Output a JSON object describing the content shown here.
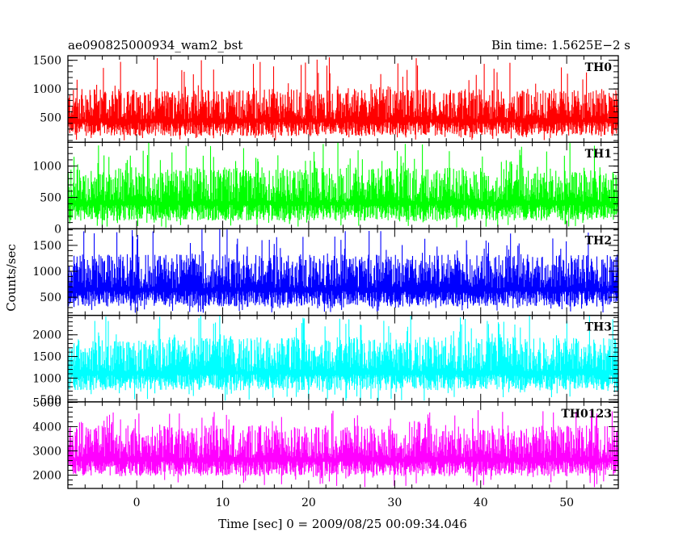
{
  "header": {
    "left_title": "ae090825000934_wam2_bst",
    "right_title": "Bin time: 1.5625E−2 s"
  },
  "chart_data": {
    "type": "line",
    "xlabel": "Time [sec] 0 = 2009/08/25 00:09:34.046",
    "ylabel": "Counts/sec",
    "xlim": [
      -8,
      56
    ],
    "xticks": [
      0,
      10,
      20,
      30,
      40,
      50
    ],
    "x_data_range": [
      -8,
      56
    ],
    "bin_time_s": 0.015625,
    "grid": false,
    "legend": "none",
    "panels": [
      {
        "name": "TH0",
        "color": "#ff0000",
        "ylim": [
          70,
          1580
        ],
        "yticks": [
          500,
          1000,
          1500
        ],
        "typical_low": 180,
        "typical_high": 1000,
        "min_dip": 90,
        "max_spike": 1560
      },
      {
        "name": "TH1",
        "color": "#00ff00",
        "ylim": [
          0,
          1380
        ],
        "yticks": [
          0,
          500,
          1000
        ],
        "typical_low": 130,
        "typical_high": 980,
        "min_dip": 20,
        "max_spike": 1380
      },
      {
        "name": "TH2",
        "color": "#0000ff",
        "ylim": [
          150,
          1820
        ],
        "yticks": [
          500,
          1000,
          1500
        ],
        "typical_low": 320,
        "typical_high": 1330,
        "min_dip": 200,
        "max_spike": 1820
      },
      {
        "name": "TH3",
        "color": "#00ffff",
        "ylim": [
          450,
          2450
        ],
        "yticks": [
          500,
          1000,
          1500,
          2000
        ],
        "typical_low": 720,
        "typical_high": 1950,
        "min_dip": 470,
        "max_spike": 2450
      },
      {
        "name": "TH0123",
        "color": "#ff00ff",
        "ylim": [
          1450,
          5020
        ],
        "yticks": [
          2000,
          3000,
          4000,
          5000
        ],
        "typical_low": 1950,
        "typical_high": 4050,
        "min_dip": 1500,
        "max_spike": 4700
      }
    ]
  }
}
